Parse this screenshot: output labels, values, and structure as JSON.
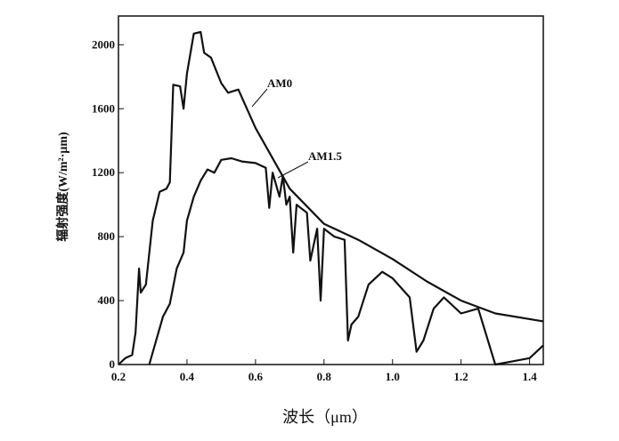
{
  "chart_data": {
    "type": "line",
    "x_label": "波长（μm）",
    "y_label": "辐射强度(W/m²·μm)",
    "series": [
      {
        "name": "AM0",
        "color": "#111111",
        "x": [
          0.2,
          0.22,
          0.24,
          0.25,
          0.26,
          0.265,
          0.28,
          0.3,
          0.32,
          0.34,
          0.35,
          0.36,
          0.38,
          0.39,
          0.4,
          0.42,
          0.44,
          0.45,
          0.47,
          0.5,
          0.52,
          0.55,
          0.6,
          0.7,
          0.8,
          0.9,
          1.0,
          1.1,
          1.2,
          1.3,
          1.44
        ],
        "values": [
          0,
          40,
          60,
          200,
          600,
          450,
          500,
          900,
          1080,
          1100,
          1140,
          1750,
          1740,
          1600,
          1820,
          2070,
          2080,
          1950,
          1920,
          1760,
          1700,
          1720,
          1480,
          1100,
          880,
          780,
          660,
          520,
          400,
          320,
          270
        ]
      },
      {
        "name": "AM1.5",
        "color": "#111111",
        "x": [
          0.29,
          0.31,
          0.33,
          0.35,
          0.37,
          0.39,
          0.4,
          0.42,
          0.44,
          0.46,
          0.48,
          0.5,
          0.53,
          0.56,
          0.6,
          0.63,
          0.64,
          0.65,
          0.67,
          0.68,
          0.69,
          0.7,
          0.71,
          0.72,
          0.75,
          0.76,
          0.78,
          0.79,
          0.8,
          0.83,
          0.86,
          0.87,
          0.88,
          0.9,
          0.93,
          0.97,
          1.0,
          1.05,
          1.07,
          1.09,
          1.12,
          1.15,
          1.2,
          1.25,
          1.3,
          1.35,
          1.4,
          1.44
        ],
        "values": [
          0,
          150,
          300,
          380,
          600,
          700,
          900,
          1050,
          1150,
          1220,
          1200,
          1280,
          1290,
          1270,
          1260,
          1230,
          980,
          1200,
          1050,
          1180,
          1000,
          1050,
          700,
          1000,
          950,
          650,
          850,
          400,
          850,
          800,
          780,
          150,
          250,
          300,
          500,
          580,
          540,
          420,
          80,
          150,
          350,
          420,
          320,
          350,
          0,
          20,
          40,
          120
        ]
      }
    ],
    "xlim": [
      0.2,
      1.44
    ],
    "ylim": [
      0,
      2180
    ],
    "xticks": [
      0.2,
      0.4,
      0.6,
      0.8,
      {
        "value": 1,
        "label": "1.0"
      },
      1.2,
      1.4
    ],
    "yticks": [
      0,
      400,
      800,
      1200,
      1600,
      2000
    ]
  }
}
